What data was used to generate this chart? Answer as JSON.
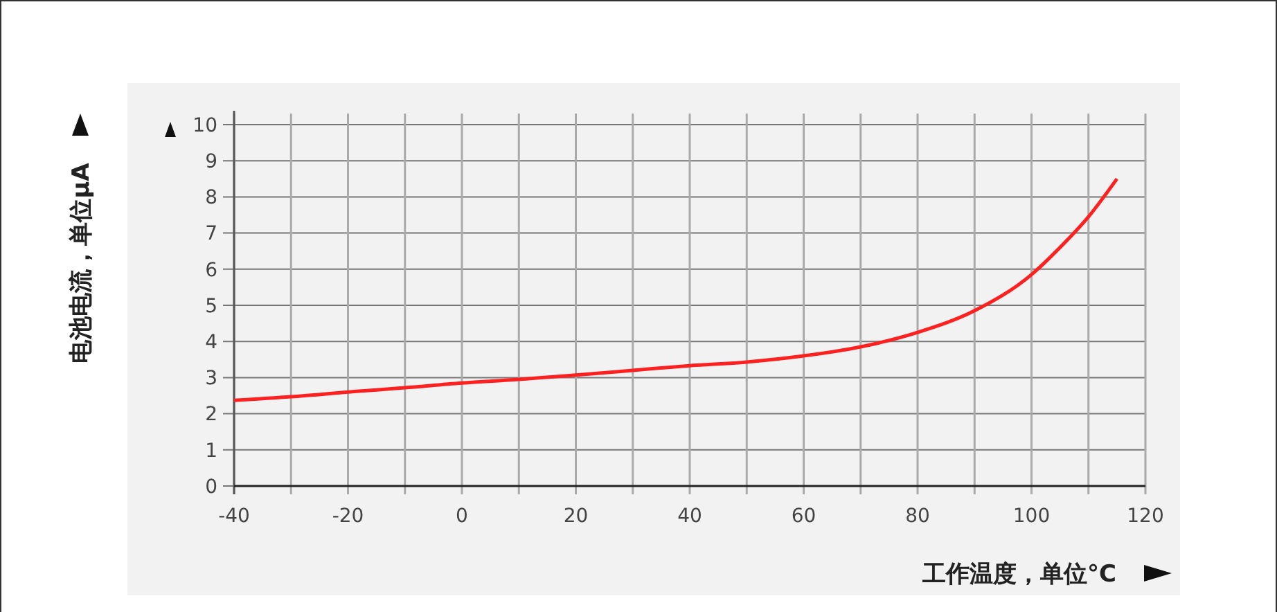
{
  "chart_data": {
    "type": "line",
    "xlabel": "工作温度，单位°C",
    "ylabel": "电池电流，单位μA",
    "x": [
      -40,
      -30,
      -20,
      -10,
      0,
      10,
      20,
      30,
      40,
      50,
      60,
      70,
      80,
      90,
      100,
      105,
      110,
      115
    ],
    "series": [
      {
        "color": "#ff2020",
        "values": [
          2.37,
          2.47,
          2.6,
          2.72,
          2.85,
          2.95,
          3.07,
          3.2,
          3.33,
          3.43,
          3.6,
          3.85,
          4.25,
          4.85,
          5.85,
          6.6,
          7.45,
          8.5
        ]
      }
    ],
    "xlim": [
      -40,
      120
    ],
    "xticks": [
      -40,
      -20,
      0,
      20,
      40,
      60,
      80,
      100,
      120
    ],
    "ylim": [
      0,
      10
    ],
    "yticks": [
      0,
      1,
      2,
      3,
      4,
      5,
      6,
      7,
      8,
      9,
      10
    ],
    "grid": true,
    "marker": "none",
    "line_style": "solid"
  }
}
